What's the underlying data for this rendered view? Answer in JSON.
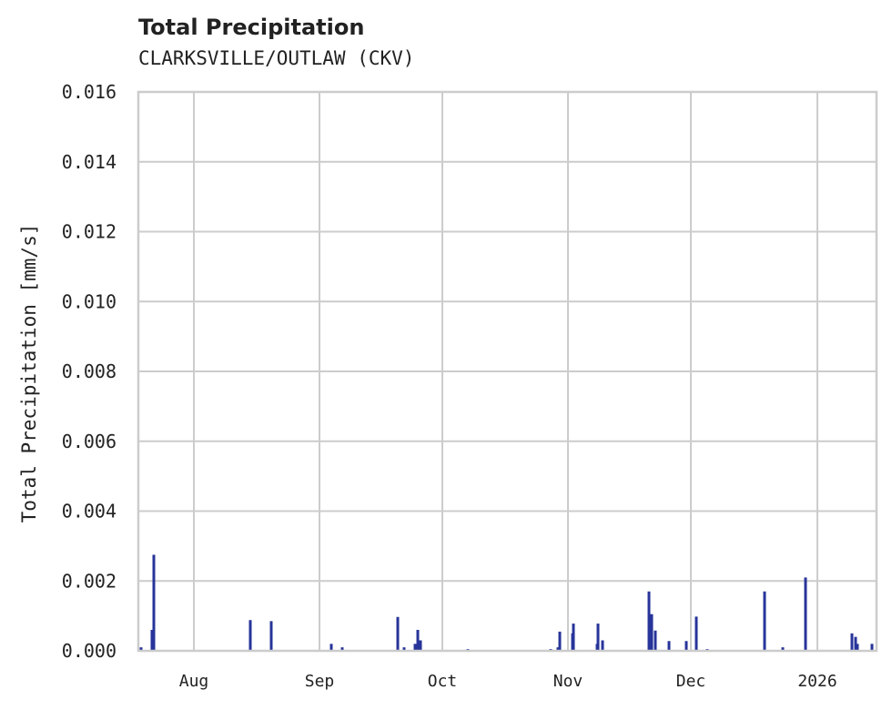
{
  "chart_data": {
    "type": "bar",
    "title": "Total Precipitation",
    "subtitle": "CLARKSVILLE/OUTLAW (CKV)",
    "xlabel": "",
    "ylabel": "Total Precipitation [mm/s]",
    "ylim": [
      0,
      0.016
    ],
    "yticks": [
      "0.000",
      "0.002",
      "0.004",
      "0.006",
      "0.008",
      "0.010",
      "0.012",
      "0.014",
      "0.016"
    ],
    "xticks": [
      "Aug",
      "Sep",
      "Oct",
      "Nov",
      "Dec",
      "2026"
    ],
    "grid": true,
    "color": "#27349a",
    "series": [
      {
        "name": "Total Precipitation",
        "points": [
          {
            "x": 155,
            "y": 0.0001
          },
          {
            "x": 167,
            "y": 0.0006
          },
          {
            "x": 169,
            "y": 0.00275
          },
          {
            "x": 275,
            "y": 0.00088
          },
          {
            "x": 298,
            "y": 0.00085
          },
          {
            "x": 364,
            "y": 0.0002
          },
          {
            "x": 376,
            "y": 0.0001
          },
          {
            "x": 437,
            "y": 0.00097
          },
          {
            "x": 444,
            "y": 0.0001
          },
          {
            "x": 456,
            "y": 0.0002
          },
          {
            "x": 459,
            "y": 0.0006
          },
          {
            "x": 462,
            "y": 0.0003
          },
          {
            "x": 514,
            "y": 5e-05
          },
          {
            "x": 605,
            "y": 5e-05
          },
          {
            "x": 613,
            "y": 0.0001
          },
          {
            "x": 615,
            "y": 0.00055
          },
          {
            "x": 629,
            "y": 0.0005
          },
          {
            "x": 630,
            "y": 0.00078
          },
          {
            "x": 656,
            "y": 0.0002
          },
          {
            "x": 657,
            "y": 0.00078
          },
          {
            "x": 662,
            "y": 0.0003
          },
          {
            "x": 713,
            "y": 0.0017
          },
          {
            "x": 716,
            "y": 0.00105
          },
          {
            "x": 720,
            "y": 0.00058
          },
          {
            "x": 735,
            "y": 0.00028
          },
          {
            "x": 754,
            "y": 0.00028
          },
          {
            "x": 765,
            "y": 0.00098
          },
          {
            "x": 777,
            "y": 5e-05
          },
          {
            "x": 840,
            "y": 0.0017
          },
          {
            "x": 860,
            "y": 0.0001
          },
          {
            "x": 885,
            "y": 0.0021
          },
          {
            "x": 936,
            "y": 0.0005
          },
          {
            "x": 940,
            "y": 0.0004
          },
          {
            "x": 942,
            "y": 0.0002
          },
          {
            "x": 958,
            "y": 0.0002
          }
        ]
      }
    ]
  }
}
